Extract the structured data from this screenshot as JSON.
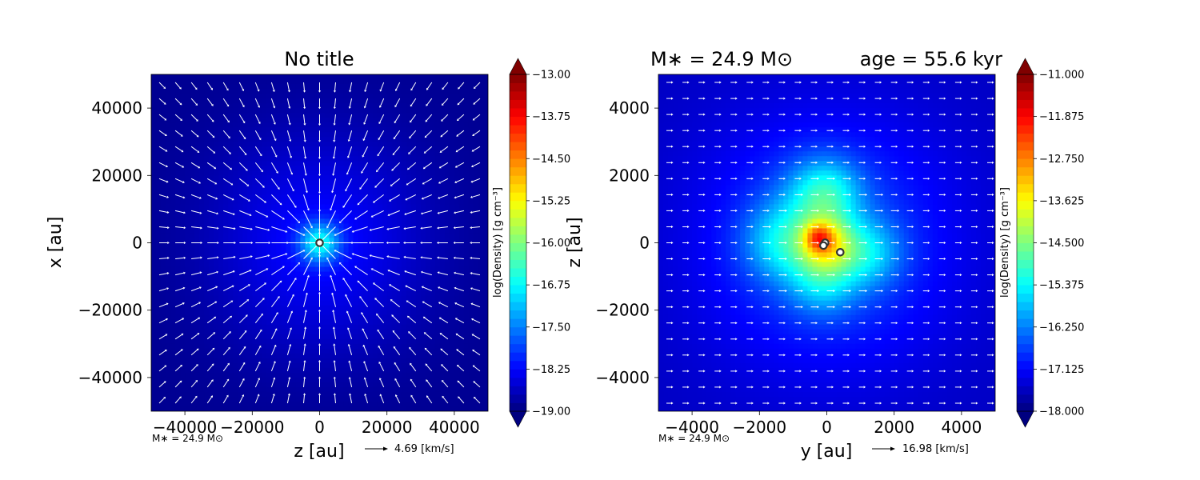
{
  "chart_data": [
    {
      "type": "heatmap",
      "title": "No title",
      "xlabel": "z [au]",
      "ylabel": "x [au]",
      "xlim": [
        -50000,
        50000
      ],
      "ylim": [
        -50000,
        50000
      ],
      "xticks": [
        -40000,
        -20000,
        0,
        20000,
        40000
      ],
      "yticks": [
        -40000,
        -20000,
        0,
        20000,
        40000
      ],
      "xtick_labels": [
        "−40000",
        "−20000",
        "0",
        "20000",
        "40000"
      ],
      "ytick_labels": [
        "−40000",
        "−20000",
        "0",
        "20000",
        "40000"
      ],
      "colormap": "jet",
      "colorbar": {
        "label": "log(Density) [g cm⁻³]",
        "min": -19.0,
        "max": -13.0,
        "ticks": [
          -19.0,
          -18.25,
          -17.5,
          -16.75,
          -16.0,
          -15.25,
          -14.5,
          -13.75,
          -13.0
        ],
        "tick_labels": [
          "−19.00",
          "−18.25",
          "−17.50",
          "−16.75",
          "−16.00",
          "−15.25",
          "−14.50",
          "−13.75",
          "−13.00"
        ],
        "extend": "both"
      },
      "background_value": -18.9,
      "blobs": [
        {
          "x": 0,
          "y": 0,
          "amp": 0.7,
          "sigma": 22000
        },
        {
          "x": 0,
          "y": 0,
          "amp": 1.6,
          "sigma": 4000
        }
      ],
      "velocity_field": "radial-inflow",
      "sink_particles": [
        {
          "x": 0,
          "y": 0
        }
      ],
      "stellar_mass_label": "M∗ = 24.9 M⊙",
      "velocity_scale_label": "4.69 [km/s]"
    },
    {
      "type": "heatmap",
      "title_left": "M∗ = 24.9 M⊙",
      "title_right": "age = 55.6 kyr",
      "xlabel": "y [au]",
      "ylabel": "z [au]",
      "xlim": [
        -5000,
        5000
      ],
      "ylim": [
        -5000,
        5000
      ],
      "xticks": [
        -4000,
        -2000,
        0,
        2000,
        4000
      ],
      "yticks": [
        -4000,
        -2000,
        0,
        2000,
        4000
      ],
      "xtick_labels": [
        "−4000",
        "−2000",
        "0",
        "2000",
        "4000"
      ],
      "ytick_labels": [
        "−4000",
        "−2000",
        "0",
        "2000",
        "4000"
      ],
      "colormap": "jet",
      "colorbar": {
        "label": "log(Density) [g cm⁻³]",
        "min": -18.0,
        "max": -11.0,
        "ticks": [
          -18.0,
          -17.125,
          -16.25,
          -15.375,
          -14.5,
          -13.625,
          -12.75,
          -11.875,
          -11.0
        ],
        "tick_labels": [
          "−18.000",
          "−17.125",
          "−16.250",
          "−15.375",
          "−14.500",
          "−13.625",
          "−12.750",
          "−11.875",
          "−11.000"
        ],
        "extend": "both"
      },
      "background_value": -17.55,
      "blobs": [
        {
          "x": 0,
          "y": 0,
          "amp": 1.0,
          "sigma": 2600
        },
        {
          "x": -1300,
          "y": 0,
          "amp": 1.3,
          "sigma": 800
        },
        {
          "x": 1200,
          "y": -300,
          "amp": 1.2,
          "sigma": 700
        },
        {
          "x": 0,
          "y": 1500,
          "amp": 1.3,
          "sigma": 700
        },
        {
          "x": -100,
          "y": -1100,
          "amp": 1.2,
          "sigma": 700
        },
        {
          "x": -400,
          "y": 1200,
          "amp": 0.5,
          "sigma": 900
        },
        {
          "x": 0,
          "y": 0,
          "amp": 2.1,
          "sigma": 550
        },
        {
          "x": -250,
          "y": 150,
          "amp": 1.5,
          "sigma": 280
        }
      ],
      "velocity_field": "uniform",
      "sink_particles": [
        {
          "x": -50,
          "y": 0
        },
        {
          "x": -100,
          "y": -80
        },
        {
          "x": 400,
          "y": -280
        }
      ],
      "stellar_mass_label": "M∗ = 24.9 M⊙",
      "velocity_scale_label": "16.98 [km/s]"
    }
  ]
}
